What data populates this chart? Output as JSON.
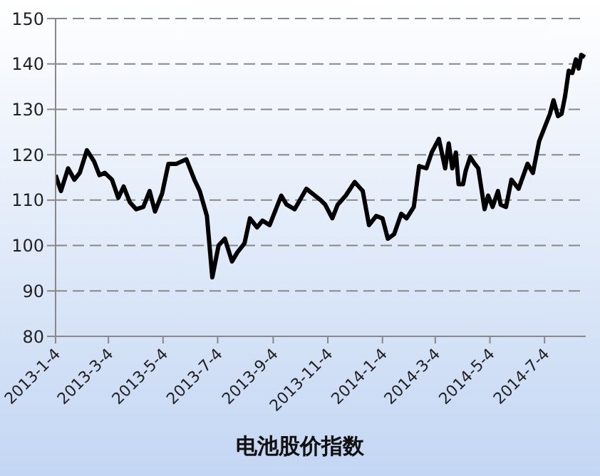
{
  "chart_data": {
    "type": "line",
    "title": "电池股价指数",
    "x": [
      "2013-01-04",
      "2013-01-10",
      "2013-01-18",
      "2013-01-25",
      "2013-01-31",
      "2013-02-08",
      "2013-02-16",
      "2013-02-22",
      "2013-02-28",
      "2013-03-08",
      "2013-03-15",
      "2013-03-21",
      "2013-03-28",
      "2013-04-04",
      "2013-04-12",
      "2013-04-19",
      "2013-04-25",
      "2013-05-03",
      "2013-05-10",
      "2013-05-19",
      "2013-05-30",
      "2013-06-08",
      "2013-06-14",
      "2013-06-22",
      "2013-06-28",
      "2013-07-05",
      "2013-07-12",
      "2013-07-20",
      "2013-07-26",
      "2013-08-03",
      "2013-08-09",
      "2013-08-17",
      "2013-08-23",
      "2013-08-31",
      "2013-09-06",
      "2013-09-13",
      "2013-09-19",
      "2013-09-28",
      "2013-10-11",
      "2013-10-27",
      "2013-11-01",
      "2013-11-09",
      "2013-11-15",
      "2013-11-24",
      "2013-12-04",
      "2013-12-13",
      "2013-12-20",
      "2013-12-28",
      "2014-01-04",
      "2014-01-10",
      "2014-01-17",
      "2014-01-25",
      "2014-01-31",
      "2014-02-08",
      "2014-02-14",
      "2014-02-22",
      "2014-02-28",
      "2014-03-08",
      "2014-03-15",
      "2014-03-19",
      "2014-03-23",
      "2014-03-27",
      "2014-03-30",
      "2014-04-04",
      "2014-04-07",
      "2014-04-12",
      "2014-04-17",
      "2014-04-21",
      "2014-04-28",
      "2014-05-02",
      "2014-05-07",
      "2014-05-13",
      "2014-05-16",
      "2014-05-22",
      "2014-05-28",
      "2014-06-05",
      "2014-06-15",
      "2014-06-21",
      "2014-06-28",
      "2014-07-05",
      "2014-07-10",
      "2014-07-14",
      "2014-07-19",
      "2014-07-23",
      "2014-07-27",
      "2014-07-31",
      "2014-08-04",
      "2014-08-08",
      "2014-08-11",
      "2014-08-14",
      "2014-08-18"
    ],
    "series": [
      {
        "color": "#000000",
        "values": [
          115.5,
          112,
          117,
          114.5,
          116,
          121,
          118.5,
          115.5,
          116,
          114.5,
          110.5,
          113,
          109.5,
          108,
          108.5,
          112,
          107.5,
          111.5,
          118,
          118,
          119,
          114.5,
          112,
          106.5,
          93,
          100,
          101.5,
          96.5,
          98.5,
          100.5,
          106,
          104,
          105.5,
          104.5,
          107.5,
          111,
          109,
          108,
          112.5,
          110,
          109,
          106,
          109,
          111,
          114,
          112,
          104.5,
          106.5,
          106,
          101.5,
          102.5,
          107,
          106,
          108.5,
          117.5,
          117,
          120.5,
          123.5,
          117,
          122.5,
          117,
          120.5,
          113.5,
          113.5,
          116.5,
          119.5,
          118,
          117,
          108,
          111,
          108.5,
          112,
          109,
          108.5,
          114.5,
          112.5,
          118,
          116,
          123,
          126.5,
          129,
          132,
          128.5,
          129,
          133,
          138.5,
          138,
          141,
          139,
          142,
          141.5
        ]
      }
    ],
    "xlim": [
      "2013-01-04",
      "2014-08-19"
    ],
    "xticks": [
      {
        "value": "2013-01-04",
        "label": "2013-1-4"
      },
      {
        "value": "2013-03-04",
        "label": "2013-3-4"
      },
      {
        "value": "2013-05-04",
        "label": "2013-5-4"
      },
      {
        "value": "2013-07-04",
        "label": "2013-7-4"
      },
      {
        "value": "2013-09-04",
        "label": "2013-9-4"
      },
      {
        "value": "2013-11-04",
        "label": "2013-11-4"
      },
      {
        "value": "2014-01-04",
        "label": "2014-1-4"
      },
      {
        "value": "2014-03-04",
        "label": "2014-3-4"
      },
      {
        "value": "2014-05-04",
        "label": "2014-5-4"
      },
      {
        "value": "2014-07-04",
        "label": "2014-7-4"
      }
    ],
    "ylim": [
      80,
      150
    ],
    "yticks": [
      80,
      90,
      100,
      110,
      120,
      130,
      140,
      150
    ],
    "grid": "y",
    "legend": false,
    "marker": "none",
    "line_style": "solid"
  }
}
